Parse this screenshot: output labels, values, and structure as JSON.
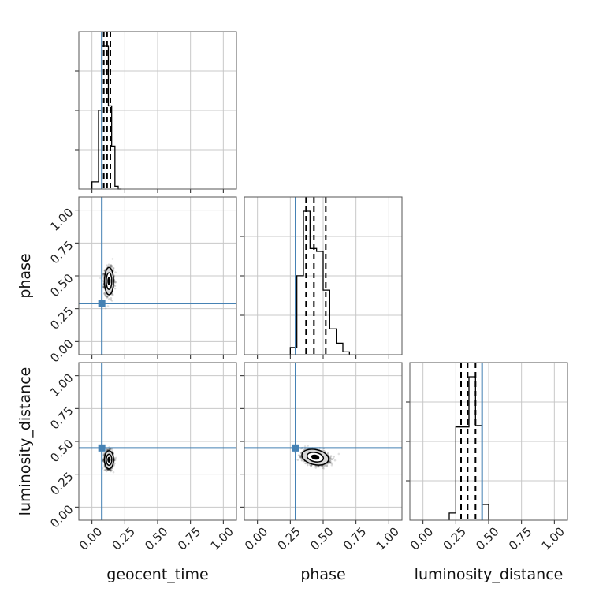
{
  "chart_data": {
    "type": "corner",
    "parameters": [
      "geocent_time",
      "phase",
      "luminosity_distance"
    ],
    "axis_range": [
      -0.1,
      1.1
    ],
    "ticks": [
      0.0,
      0.25,
      0.5,
      0.75,
      1.0
    ],
    "tick_labels": [
      "0.00",
      "0.25",
      "0.50",
      "0.75",
      "1.00"
    ],
    "grid": true,
    "colors": {
      "truth": "#4682b4",
      "hist": "#000000",
      "contour_fill": "#d7d7d7"
    },
    "truths": {
      "geocent_time": 0.075,
      "phase": 0.29,
      "luminosity_distance": 0.45
    },
    "histograms": {
      "geocent_time": {
        "edges": [
          0.0,
          0.025,
          0.05,
          0.075,
          0.1,
          0.125,
          0.15,
          0.175,
          0.2,
          0.225
        ],
        "counts": [
          0.05,
          0.05,
          0.55,
          1.0,
          1.0,
          0.58,
          0.3,
          0.02,
          0.0
        ],
        "quantiles": [
          0.09,
          0.115,
          0.14
        ]
      },
      "phase": {
        "edges": [
          0.25,
          0.3,
          0.35,
          0.4,
          0.45,
          0.5,
          0.55,
          0.6,
          0.65,
          0.7
        ],
        "counts": [
          0.05,
          0.55,
          1.0,
          0.74,
          0.72,
          0.45,
          0.18,
          0.08,
          0.02
        ],
        "quantiles": [
          0.37,
          0.43,
          0.52
        ]
      },
      "luminosity_distance": {
        "edges": [
          0.2,
          0.25,
          0.3,
          0.35,
          0.4,
          0.45,
          0.5
        ],
        "counts": [
          0.05,
          0.65,
          0.65,
          1.0,
          0.66,
          0.11
        ],
        "quantiles": [
          0.29,
          0.34,
          0.4
        ]
      }
    },
    "scatter_panels": [
      {
        "x": "geocent_time",
        "y": "phase",
        "center": [
          0.13,
          0.46
        ],
        "spread": [
          0.03,
          0.09
        ]
      },
      {
        "x": "geocent_time",
        "y": "luminosity_distance",
        "center": [
          0.13,
          0.36
        ],
        "spread": [
          0.03,
          0.06
        ]
      },
      {
        "x": "phase",
        "y": "luminosity_distance",
        "center": [
          0.44,
          0.38
        ],
        "spread": [
          0.09,
          0.05
        ]
      }
    ]
  }
}
